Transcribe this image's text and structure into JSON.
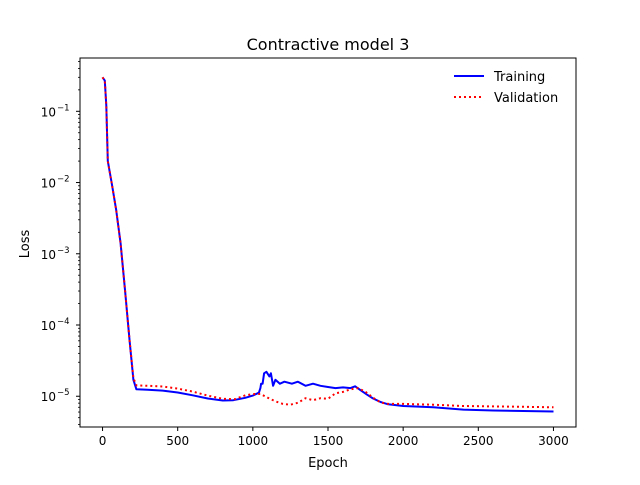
{
  "chart_data": {
    "type": "line",
    "title": "Contractive model 3",
    "xlabel": "Epoch",
    "ylabel": "Loss",
    "xlim": [
      -150,
      3150
    ],
    "ylim": [
      3.7e-06,
      0.56
    ],
    "yscale": "log",
    "grid": false,
    "legend_position": "top-right",
    "x_ticks": [
      0,
      500,
      1000,
      1500,
      2000,
      2500,
      3000
    ],
    "x_tick_labels": [
      "0",
      "500",
      "1000",
      "1500",
      "2000",
      "2500",
      "3000"
    ],
    "y_ticks": [
      {
        "value": 0.1,
        "base": "10",
        "exp": "−1"
      },
      {
        "value": 0.01,
        "base": "10",
        "exp": "−2"
      },
      {
        "value": 0.001,
        "base": "10",
        "exp": "−3"
      },
      {
        "value": 0.0001,
        "base": "10",
        "exp": "−4"
      },
      {
        "value": 1e-05,
        "base": "10",
        "exp": "−5"
      }
    ],
    "series": [
      {
        "name": "Training",
        "color": "#0000ff",
        "style": "solid",
        "points": [
          [
            0,
            0.3
          ],
          [
            15,
            0.27
          ],
          [
            25,
            0.12
          ],
          [
            35,
            0.02
          ],
          [
            60,
            0.01
          ],
          [
            90,
            0.0042
          ],
          [
            120,
            0.0014
          ],
          [
            150,
            0.0003
          ],
          [
            180,
            6e-05
          ],
          [
            205,
            1.7e-05
          ],
          [
            225,
            1.25e-05
          ],
          [
            300,
            1.23e-05
          ],
          [
            400,
            1.2e-05
          ],
          [
            500,
            1.13e-05
          ],
          [
            600,
            1.03e-05
          ],
          [
            700,
            9.3e-06
          ],
          [
            800,
            8.7e-06
          ],
          [
            870,
            8.8e-06
          ],
          [
            950,
            9.5e-06
          ],
          [
            1000,
            1.02e-05
          ],
          [
            1040,
            1.12e-05
          ],
          [
            1050,
            1.3e-05
          ],
          [
            1055,
            1.5e-05
          ],
          [
            1065,
            1.5e-05
          ],
          [
            1075,
            2.1e-05
          ],
          [
            1090,
            2.2e-05
          ],
          [
            1110,
            1.9e-05
          ],
          [
            1120,
            2.1e-05
          ],
          [
            1135,
            1.4e-05
          ],
          [
            1150,
            1.7e-05
          ],
          [
            1180,
            1.5e-05
          ],
          [
            1210,
            1.6e-05
          ],
          [
            1260,
            1.5e-05
          ],
          [
            1300,
            1.6e-05
          ],
          [
            1350,
            1.4e-05
          ],
          [
            1400,
            1.5e-05
          ],
          [
            1450,
            1.4e-05
          ],
          [
            1500,
            1.35e-05
          ],
          [
            1550,
            1.3e-05
          ],
          [
            1600,
            1.33e-05
          ],
          [
            1650,
            1.3e-05
          ],
          [
            1680,
            1.38e-05
          ],
          [
            1720,
            1.2e-05
          ],
          [
            1760,
            1.05e-05
          ],
          [
            1800,
            9.3e-06
          ],
          [
            1850,
            8.3e-06
          ],
          [
            1900,
            7.7e-06
          ],
          [
            2000,
            7.3e-06
          ],
          [
            2200,
            7e-06
          ],
          [
            2400,
            6.5e-06
          ],
          [
            2600,
            6.3e-06
          ],
          [
            2800,
            6.2e-06
          ],
          [
            3000,
            6.1e-06
          ]
        ]
      },
      {
        "name": "Validation",
        "color": "#ff0000",
        "style": "dotted",
        "points": [
          [
            0,
            0.3
          ],
          [
            15,
            0.27
          ],
          [
            25,
            0.12
          ],
          [
            35,
            0.02
          ],
          [
            60,
            0.01
          ],
          [
            90,
            0.0042
          ],
          [
            120,
            0.0014
          ],
          [
            150,
            0.0003
          ],
          [
            180,
            6e-05
          ],
          [
            205,
            1.8e-05
          ],
          [
            225,
            1.42e-05
          ],
          [
            300,
            1.4e-05
          ],
          [
            400,
            1.37e-05
          ],
          [
            500,
            1.28e-05
          ],
          [
            600,
            1.16e-05
          ],
          [
            700,
            1.02e-05
          ],
          [
            800,
            9.2e-06
          ],
          [
            880,
            9.1e-06
          ],
          [
            950,
            1.03e-05
          ],
          [
            1000,
            1.07e-05
          ],
          [
            1050,
            1.08e-05
          ],
          [
            1100,
            9.5e-06
          ],
          [
            1150,
            8.5e-06
          ],
          [
            1200,
            7.8e-06
          ],
          [
            1250,
            7.6e-06
          ],
          [
            1300,
            8.1e-06
          ],
          [
            1350,
            9.4e-06
          ],
          [
            1400,
            8.8e-06
          ],
          [
            1450,
            9.4e-06
          ],
          [
            1500,
            9.2e-06
          ],
          [
            1550,
            1.1e-05
          ],
          [
            1600,
            1.15e-05
          ],
          [
            1650,
            1.25e-05
          ],
          [
            1700,
            1.3e-05
          ],
          [
            1750,
            1.15e-05
          ],
          [
            1800,
            9.5e-06
          ],
          [
            1850,
            8.2e-06
          ],
          [
            1900,
            7.8e-06
          ],
          [
            2000,
            7.8e-06
          ],
          [
            2200,
            7.6e-06
          ],
          [
            2400,
            7.3e-06
          ],
          [
            2600,
            7.2e-06
          ],
          [
            2800,
            7.1e-06
          ],
          [
            3000,
            7e-06
          ]
        ]
      }
    ]
  }
}
